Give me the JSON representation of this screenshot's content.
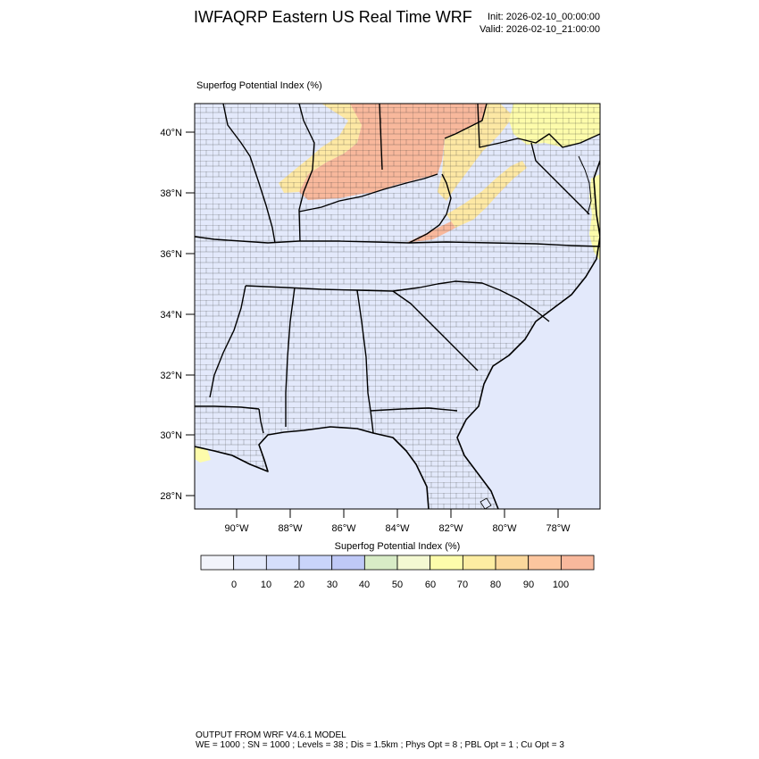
{
  "header": {
    "title": "IWFAQRP Eastern US Real Time WRF",
    "init": "Init: 2026-02-10_00:00:00",
    "valid": "Valid: 2026-02-10_21:00:00"
  },
  "field": {
    "label": "Superfog Potential Index    (%)"
  },
  "axes": {
    "lat_labels": [
      "40°N",
      "38°N",
      "36°N",
      "34°N",
      "32°N",
      "30°N",
      "28°N"
    ],
    "lon_labels": [
      "90°W",
      "88°W",
      "86°W",
      "84°W",
      "82°W",
      "80°W",
      "78°W"
    ]
  },
  "colorbar": {
    "title": "Superfog Potential Index  (%)",
    "labels": [
      "0",
      "10",
      "20",
      "30",
      "40",
      "50",
      "60",
      "70",
      "80",
      "90",
      "100"
    ],
    "colors": [
      "#f2f4fb",
      "#e3e9fb",
      "#d5defb",
      "#c9d4fa",
      "#bfc9f7",
      "#d8ecc6",
      "#f4f9d2",
      "#fdfcab",
      "#fdeda2",
      "#fbd89c",
      "#fcc69f",
      "#f8b89c"
    ]
  },
  "map": {
    "land_color": "#e3e9fb",
    "ocean_color": "#e3e9fb",
    "high_index_color": "#f8b89c",
    "mid_index_color": "#fde8a4",
    "low_index_color": "#fdfcab"
  },
  "footer": {
    "line1": "OUTPUT FROM WRF V4.6.1 MODEL",
    "line2": "WE = 1000 ; SN = 1000 ; Levels = 38 ; Dis = 1.5km ; Phys Opt = 8 ; PBL Opt = 1 ; Cu Opt = 3"
  }
}
